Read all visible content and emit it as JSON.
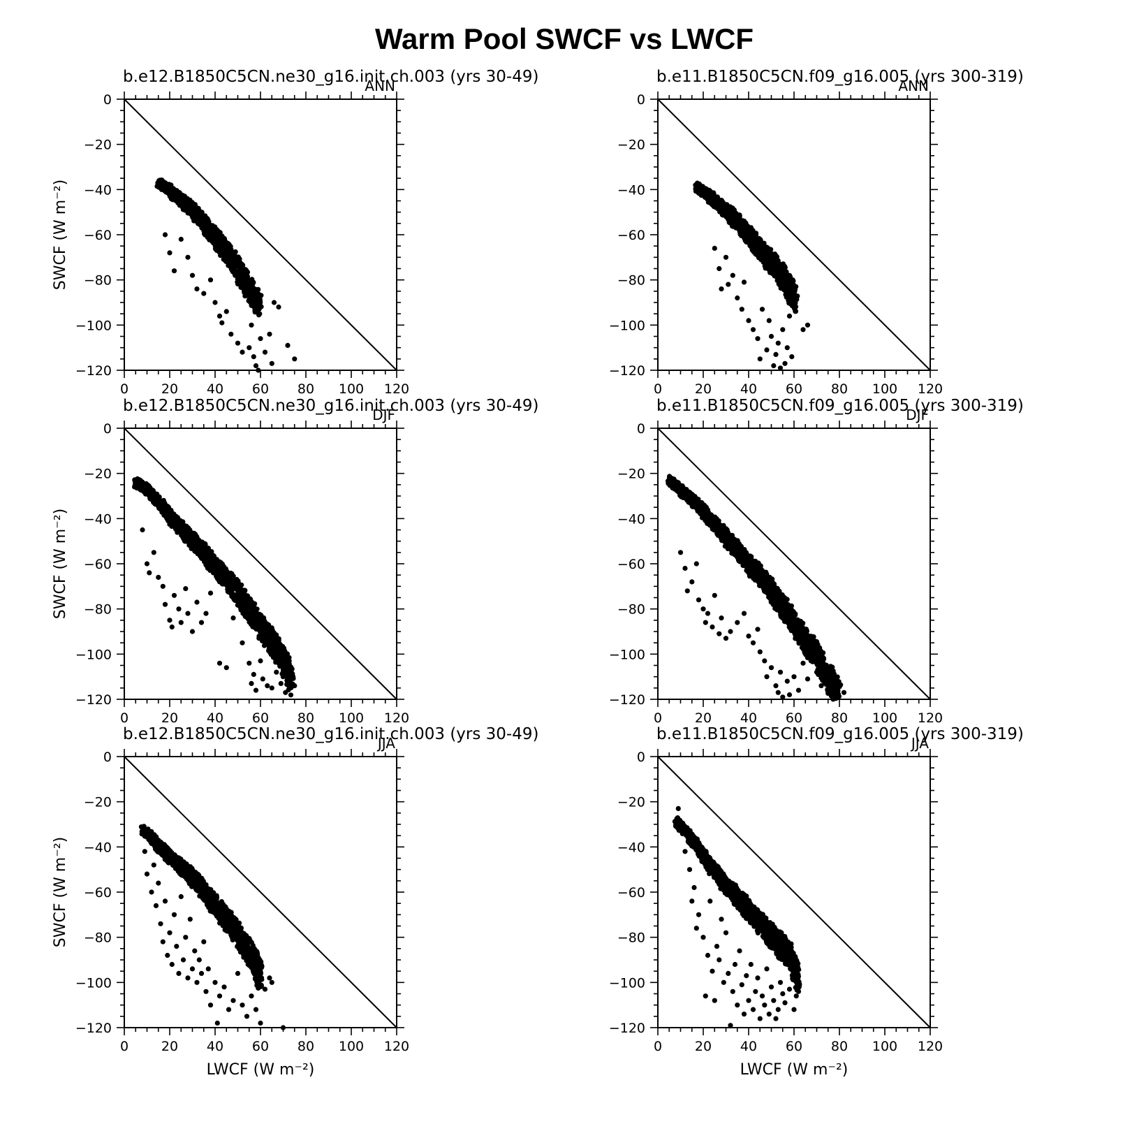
{
  "title": "Warm Pool SWCF vs LWCF",
  "axes": {
    "xlabel": "LWCF (W m⁻²)",
    "ylabel": "SWCF (W m⁻²)"
  },
  "chart_data": [
    {
      "type": "scatter",
      "case": "b.e12.B1850C5CN.ne30_g16.init.ch.003 (yrs 30-49)",
      "season": "ANN",
      "xlim": [
        0,
        120
      ],
      "ylim": [
        -120,
        0
      ],
      "xticks": [
        0,
        20,
        40,
        60,
        80,
        100,
        120
      ],
      "yticks": [
        0,
        -20,
        -40,
        -60,
        -80,
        -100,
        -120
      ],
      "reference_line": "1:1",
      "dense_band": [
        [
          15,
          -35
        ],
        [
          20,
          -38
        ],
        [
          25,
          -42
        ],
        [
          30,
          -46
        ],
        [
          35,
          -51
        ],
        [
          40,
          -57
        ],
        [
          45,
          -63
        ],
        [
          50,
          -70
        ],
        [
          55,
          -78
        ],
        [
          60,
          -86
        ]
      ],
      "scatter": [
        [
          18,
          -60
        ],
        [
          20,
          -68
        ],
        [
          22,
          -76
        ],
        [
          25,
          -62
        ],
        [
          28,
          -70
        ],
        [
          30,
          -78
        ],
        [
          32,
          -84
        ],
        [
          35,
          -86
        ],
        [
          38,
          -80
        ],
        [
          40,
          -90
        ],
        [
          42,
          -96
        ],
        [
          43,
          -99
        ],
        [
          45,
          -94
        ],
        [
          47,
          -104
        ],
        [
          50,
          -108
        ],
        [
          52,
          -112
        ],
        [
          55,
          -110
        ],
        [
          56,
          -100
        ],
        [
          57,
          -114
        ],
        [
          58,
          -118
        ],
        [
          59,
          -120
        ],
        [
          60,
          -106
        ],
        [
          62,
          -112
        ],
        [
          64,
          -104
        ],
        [
          65,
          -117
        ],
        [
          66,
          -90
        ],
        [
          68,
          -92
        ],
        [
          72,
          -109
        ],
        [
          75,
          -115
        ]
      ]
    },
    {
      "type": "scatter",
      "case": "b.e11.B1850C5CN.f09_g16.005 (yrs 300-319)",
      "season": "ANN",
      "xlim": [
        0,
        120
      ],
      "ylim": [
        -120,
        0
      ],
      "xticks": [
        0,
        20,
        40,
        60,
        80,
        100,
        120
      ],
      "yticks": [
        0,
        -20,
        -40,
        -60,
        -80,
        -100,
        -120
      ],
      "reference_line": "1:1",
      "dense_band": [
        [
          17,
          -37
        ],
        [
          22,
          -40
        ],
        [
          27,
          -44
        ],
        [
          32,
          -48
        ],
        [
          37,
          -53
        ],
        [
          42,
          -58
        ],
        [
          47,
          -64
        ],
        [
          52,
          -69
        ],
        [
          57,
          -76
        ],
        [
          61,
          -84
        ]
      ],
      "scatter": [
        [
          25,
          -66
        ],
        [
          27,
          -75
        ],
        [
          28,
          -84
        ],
        [
          30,
          -70
        ],
        [
          31,
          -82
        ],
        [
          33,
          -78
        ],
        [
          35,
          -88
        ],
        [
          37,
          -93
        ],
        [
          38,
          -81
        ],
        [
          40,
          -98
        ],
        [
          42,
          -102
        ],
        [
          44,
          -106
        ],
        [
          45,
          -115
        ],
        [
          46,
          -93
        ],
        [
          48,
          -111
        ],
        [
          49,
          -98
        ],
        [
          50,
          -105
        ],
        [
          51,
          -118
        ],
        [
          52,
          -113
        ],
        [
          53,
          -108
        ],
        [
          54,
          -119
        ],
        [
          55,
          -102
        ],
        [
          56,
          -117
        ],
        [
          57,
          -110
        ],
        [
          58,
          -96
        ],
        [
          59,
          -114
        ],
        [
          60,
          -92
        ],
        [
          61,
          -88
        ],
        [
          64,
          -102
        ],
        [
          66,
          -100
        ]
      ]
    },
    {
      "type": "scatter",
      "case": "b.e12.B1850C5CN.ne30_g16.init.ch.003 (yrs 30-49)",
      "season": "DJF",
      "xlim": [
        0,
        120
      ],
      "ylim": [
        -120,
        0
      ],
      "xticks": [
        0,
        20,
        40,
        60,
        80,
        100,
        120
      ],
      "yticks": [
        0,
        -20,
        -40,
        -60,
        -80,
        -100,
        -120
      ],
      "reference_line": "1:1",
      "dense_band": [
        [
          5,
          -22
        ],
        [
          10,
          -25
        ],
        [
          15,
          -30
        ],
        [
          20,
          -36
        ],
        [
          25,
          -41
        ],
        [
          30,
          -46
        ],
        [
          35,
          -51
        ],
        [
          40,
          -57
        ],
        [
          45,
          -62
        ],
        [
          50,
          -68
        ],
        [
          55,
          -75
        ],
        [
          60,
          -82
        ],
        [
          65,
          -89
        ],
        [
          70,
          -97
        ],
        [
          74,
          -106
        ]
      ],
      "scatter": [
        [
          8,
          -45
        ],
        [
          10,
          -60
        ],
        [
          11,
          -64
        ],
        [
          13,
          -55
        ],
        [
          15,
          -66
        ],
        [
          17,
          -70
        ],
        [
          18,
          -78
        ],
        [
          20,
          -85
        ],
        [
          21,
          -88
        ],
        [
          22,
          -74
        ],
        [
          24,
          -80
        ],
        [
          25,
          -86
        ],
        [
          27,
          -71
        ],
        [
          28,
          -82
        ],
        [
          30,
          -90
        ],
        [
          32,
          -77
        ],
        [
          34,
          -86
        ],
        [
          36,
          -82
        ],
        [
          38,
          -73
        ],
        [
          42,
          -104
        ],
        [
          45,
          -106
        ],
        [
          48,
          -84
        ],
        [
          52,
          -95
        ],
        [
          55,
          -104
        ],
        [
          56,
          -113
        ],
        [
          57,
          -109
        ],
        [
          58,
          -116
        ],
        [
          60,
          -103
        ],
        [
          61,
          -111
        ],
        [
          63,
          -114
        ],
        [
          65,
          -115
        ],
        [
          67,
          -108
        ],
        [
          69,
          -113
        ],
        [
          71,
          -117
        ],
        [
          73,
          -110
        ],
        [
          75,
          -114
        ]
      ]
    },
    {
      "type": "scatter",
      "case": "b.e11.B1850C5CN.f09_g16.005 (yrs 300-319)",
      "season": "DJF",
      "xlim": [
        0,
        120
      ],
      "ylim": [
        -120,
        0
      ],
      "xticks": [
        0,
        20,
        40,
        60,
        80,
        100,
        120
      ],
      "yticks": [
        0,
        -20,
        -40,
        -60,
        -80,
        -100,
        -120
      ],
      "reference_line": "1:1",
      "dense_band": [
        [
          5,
          -21
        ],
        [
          10,
          -25
        ],
        [
          15,
          -29
        ],
        [
          20,
          -34
        ],
        [
          25,
          -39
        ],
        [
          30,
          -45
        ],
        [
          35,
          -50
        ],
        [
          40,
          -56
        ],
        [
          45,
          -61
        ],
        [
          50,
          -67
        ],
        [
          55,
          -74
        ],
        [
          60,
          -81
        ],
        [
          65,
          -88
        ],
        [
          70,
          -95
        ],
        [
          75,
          -104
        ],
        [
          80,
          -112
        ]
      ],
      "scatter": [
        [
          10,
          -55
        ],
        [
          12,
          -62
        ],
        [
          13,
          -72
        ],
        [
          15,
          -68
        ],
        [
          17,
          -60
        ],
        [
          18,
          -76
        ],
        [
          20,
          -80
        ],
        [
          21,
          -86
        ],
        [
          22,
          -82
        ],
        [
          24,
          -88
        ],
        [
          25,
          -74
        ],
        [
          27,
          -91
        ],
        [
          28,
          -84
        ],
        [
          30,
          -93
        ],
        [
          32,
          -90
        ],
        [
          35,
          -86
        ],
        [
          38,
          -82
        ],
        [
          40,
          -92
        ],
        [
          42,
          -95
        ],
        [
          44,
          -89
        ],
        [
          45,
          -99
        ],
        [
          47,
          -103
        ],
        [
          48,
          -110
        ],
        [
          50,
          -106
        ],
        [
          52,
          -114
        ],
        [
          53,
          -117
        ],
        [
          54,
          -108
        ],
        [
          55,
          -119
        ],
        [
          57,
          -112
        ],
        [
          58,
          -118
        ],
        [
          60,
          -110
        ],
        [
          62,
          -116
        ],
        [
          64,
          -104
        ],
        [
          66,
          -111
        ],
        [
          68,
          -102
        ],
        [
          70,
          -108
        ],
        [
          72,
          -114
        ],
        [
          74,
          -106
        ],
        [
          76,
          -112
        ],
        [
          78,
          -110
        ],
        [
          80,
          -114
        ],
        [
          82,
          -117
        ]
      ]
    },
    {
      "type": "scatter",
      "case": "b.e12.B1850C5CN.ne30_g16.init.ch.003 (yrs 30-49)",
      "season": "JJA",
      "xlim": [
        0,
        120
      ],
      "ylim": [
        -120,
        0
      ],
      "xticks": [
        0,
        20,
        40,
        60,
        80,
        100,
        120
      ],
      "yticks": [
        0,
        -20,
        -40,
        -60,
        -80,
        -100,
        -120
      ],
      "reference_line": "1:1",
      "dense_band": [
        [
          8,
          -30
        ],
        [
          13,
          -35
        ],
        [
          18,
          -40
        ],
        [
          23,
          -44
        ],
        [
          28,
          -48
        ],
        [
          33,
          -53
        ],
        [
          38,
          -59
        ],
        [
          43,
          -65
        ],
        [
          48,
          -70
        ],
        [
          53,
          -78
        ],
        [
          58,
          -86
        ],
        [
          60,
          -92
        ]
      ],
      "scatter": [
        [
          9,
          -42
        ],
        [
          10,
          -52
        ],
        [
          12,
          -60
        ],
        [
          13,
          -48
        ],
        [
          14,
          -66
        ],
        [
          15,
          -56
        ],
        [
          16,
          -74
        ],
        [
          17,
          -82
        ],
        [
          18,
          -64
        ],
        [
          19,
          -88
        ],
        [
          20,
          -78
        ],
        [
          21,
          -92
        ],
        [
          22,
          -70
        ],
        [
          23,
          -84
        ],
        [
          24,
          -96
        ],
        [
          25,
          -62
        ],
        [
          26,
          -90
        ],
        [
          27,
          -80
        ],
        [
          28,
          -98
        ],
        [
          29,
          -72
        ],
        [
          30,
          -94
        ],
        [
          31,
          -86
        ],
        [
          32,
          -100
        ],
        [
          33,
          -90
        ],
        [
          34,
          -96
        ],
        [
          35,
          -82
        ],
        [
          36,
          -104
        ],
        [
          37,
          -94
        ],
        [
          38,
          -110
        ],
        [
          40,
          -100
        ],
        [
          41,
          -118
        ],
        [
          42,
          -106
        ],
        [
          44,
          -102
        ],
        [
          46,
          -112
        ],
        [
          48,
          -108
        ],
        [
          50,
          -96
        ],
        [
          52,
          -110
        ],
        [
          54,
          -115
        ],
        [
          56,
          -106
        ],
        [
          58,
          -112
        ],
        [
          60,
          -118
        ],
        [
          62,
          -103
        ],
        [
          64,
          -98
        ],
        [
          65,
          -100
        ],
        [
          70,
          -120
        ]
      ]
    },
    {
      "type": "scatter",
      "case": "b.e11.B1850C5CN.f09_g16.005 (yrs 300-319)",
      "season": "JJA",
      "xlim": [
        0,
        120
      ],
      "ylim": [
        -120,
        0
      ],
      "xticks": [
        0,
        20,
        40,
        60,
        80,
        100,
        120
      ],
      "yticks": [
        0,
        -20,
        -40,
        -60,
        -80,
        -100,
        -120
      ],
      "reference_line": "1:1",
      "dense_band": [
        [
          8,
          -27
        ],
        [
          13,
          -32
        ],
        [
          18,
          -38
        ],
        [
          23,
          -45
        ],
        [
          28,
          -51
        ],
        [
          33,
          -56
        ],
        [
          38,
          -61
        ],
        [
          43,
          -67
        ],
        [
          48,
          -72
        ],
        [
          53,
          -77
        ],
        [
          58,
          -82
        ],
        [
          62,
          -92
        ]
      ],
      "scatter": [
        [
          9,
          -23
        ],
        [
          12,
          -42
        ],
        [
          14,
          -50
        ],
        [
          15,
          -64
        ],
        [
          16,
          -58
        ],
        [
          17,
          -76
        ],
        [
          18,
          -70
        ],
        [
          20,
          -80
        ],
        [
          21,
          -106
        ],
        [
          22,
          -88
        ],
        [
          23,
          -64
        ],
        [
          24,
          -95
        ],
        [
          25,
          -108
        ],
        [
          26,
          -84
        ],
        [
          27,
          -90
        ],
        [
          28,
          -72
        ],
        [
          29,
          -100
        ],
        [
          30,
          -78
        ],
        [
          31,
          -96
        ],
        [
          32,
          -119
        ],
        [
          33,
          -104
        ],
        [
          34,
          -92
        ],
        [
          35,
          -110
        ],
        [
          36,
          -86
        ],
        [
          37,
          -101
        ],
        [
          38,
          -114
        ],
        [
          39,
          -97
        ],
        [
          40,
          -108
        ],
        [
          41,
          -92
        ],
        [
          42,
          -112
        ],
        [
          43,
          -104
        ],
        [
          44,
          -98
        ],
        [
          45,
          -116
        ],
        [
          46,
          -106
        ],
        [
          47,
          -110
        ],
        [
          48,
          -94
        ],
        [
          49,
          -114
        ],
        [
          50,
          -102
        ],
        [
          51,
          -108
        ],
        [
          52,
          -116
        ],
        [
          53,
          -112
        ],
        [
          54,
          -100
        ],
        [
          55,
          -105
        ],
        [
          56,
          -109
        ],
        [
          58,
          -103
        ],
        [
          60,
          -112
        ],
        [
          61,
          -106
        ],
        [
          62,
          -104
        ]
      ]
    }
  ]
}
